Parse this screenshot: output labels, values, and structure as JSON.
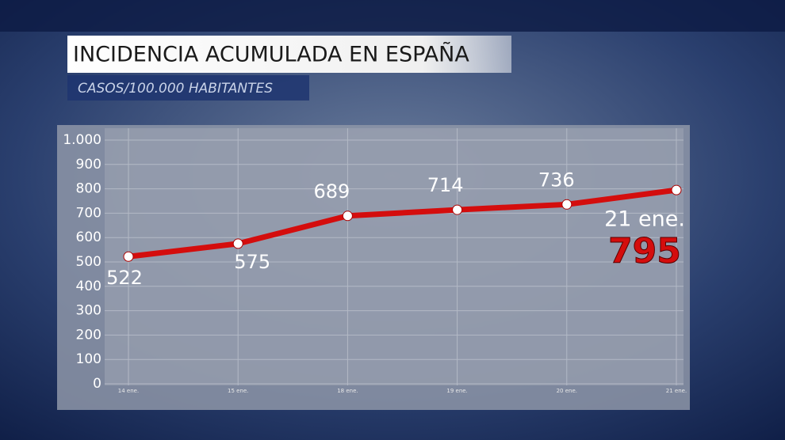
{
  "chart_data": {
    "type": "line",
    "title": "INCIDENCIA ACUMULADA EN ESPAÑA",
    "subtitle": "CASOS/100.000 HABITANTES",
    "categories": [
      "14 ene.",
      "15 ene.",
      "18 ene.",
      "19 ene.",
      "20 ene.",
      "21 ene."
    ],
    "series": [
      {
        "name": "Incidencia acumulada",
        "color": "#d40d0d",
        "values": [
          522,
          575,
          689,
          714,
          736,
          795
        ]
      }
    ],
    "ylim": [
      0,
      1000
    ],
    "yticks": [
      0,
      100,
      200,
      300,
      400,
      500,
      600,
      700,
      800,
      900,
      {
        "value": 1000,
        "label": "1.000"
      }
    ],
    "grid": true
  }
}
